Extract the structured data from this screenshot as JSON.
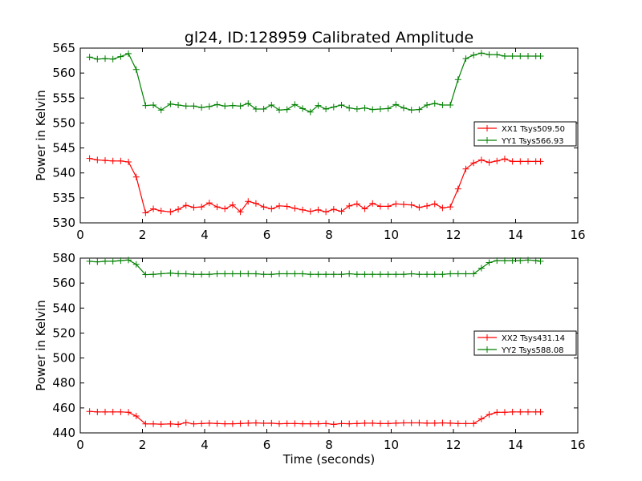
{
  "title": "gl24, ID:128959 Calibrated Amplitude",
  "chart_data": [
    {
      "type": "line",
      "ylabel": "Power in Kelvin",
      "xlabel": "",
      "xlim": [
        0,
        16
      ],
      "ylim": [
        530,
        565
      ],
      "x_ticks": [
        "0",
        "2",
        "4",
        "6",
        "8",
        "10",
        "12",
        "14",
        "16"
      ],
      "y_ticks": [
        "530",
        "535",
        "540",
        "545",
        "550",
        "555",
        "560",
        "565"
      ],
      "legend_position": "center-right",
      "x": [
        0.3,
        0.55,
        0.8,
        1.05,
        1.3,
        1.55,
        1.8,
        2.1,
        2.35,
        2.6,
        2.9,
        3.15,
        3.4,
        3.65,
        3.9,
        4.15,
        4.4,
        4.65,
        4.9,
        5.15,
        5.4,
        5.65,
        5.9,
        6.15,
        6.4,
        6.65,
        6.9,
        7.15,
        7.4,
        7.65,
        7.9,
        8.15,
        8.4,
        8.65,
        8.9,
        9.15,
        9.4,
        9.65,
        9.9,
        10.15,
        10.4,
        10.65,
        10.9,
        11.15,
        11.4,
        11.65,
        11.9,
        12.15,
        12.4,
        12.65,
        12.9,
        13.15,
        13.4,
        13.65,
        13.9,
        14.15,
        14.4,
        14.65,
        14.8
      ],
      "series": [
        {
          "name": "XX1 Tsys509.50",
          "color": "#ff0000",
          "values": [
            542.9,
            542.6,
            542.5,
            542.4,
            542.4,
            542.2,
            539.2,
            532.0,
            532.8,
            532.4,
            532.2,
            532.7,
            533.5,
            533.1,
            533.2,
            534.0,
            533.2,
            532.8,
            533.6,
            532.2,
            534.3,
            533.9,
            533.2,
            532.8,
            533.4,
            533.3,
            532.9,
            532.6,
            532.3,
            532.6,
            532.2,
            532.7,
            532.3,
            533.4,
            533.8,
            532.8,
            533.9,
            533.3,
            533.3,
            533.8,
            533.7,
            533.6,
            533.1,
            533.4,
            533.8,
            533.0,
            533.2,
            536.8,
            540.8,
            542.0,
            542.6,
            542.1,
            542.4,
            542.8,
            542.3,
            542.3,
            542.3,
            542.3,
            542.3
          ]
        },
        {
          "name": "YY1 Tsys566.93",
          "color": "#008000",
          "values": [
            563.2,
            562.8,
            562.9,
            562.8,
            563.3,
            563.9,
            560.7,
            553.5,
            553.6,
            552.6,
            553.8,
            553.6,
            553.4,
            553.4,
            553.1,
            553.3,
            553.7,
            553.4,
            553.5,
            553.4,
            553.9,
            552.8,
            552.8,
            553.6,
            552.6,
            552.7,
            553.7,
            552.9,
            552.2,
            553.5,
            552.8,
            553.2,
            553.6,
            553.0,
            552.8,
            553.0,
            552.7,
            552.8,
            552.9,
            553.7,
            553.0,
            552.6,
            552.7,
            553.6,
            553.9,
            553.6,
            553.6,
            558.7,
            562.9,
            563.6,
            564.0,
            563.7,
            563.7,
            563.4,
            563.4,
            563.4,
            563.4,
            563.4,
            563.4
          ]
        }
      ]
    },
    {
      "type": "line",
      "ylabel": "Power in Kelvin",
      "xlabel": "Time (seconds)",
      "xlim": [
        0,
        16
      ],
      "ylim": [
        440,
        580
      ],
      "x_ticks": [
        "0",
        "2",
        "4",
        "6",
        "8",
        "10",
        "12",
        "14",
        "16"
      ],
      "y_ticks": [
        "440",
        "460",
        "480",
        "500",
        "520",
        "540",
        "560",
        "580"
      ],
      "legend_position": "center-right",
      "x": [
        0.3,
        0.55,
        0.8,
        1.05,
        1.3,
        1.55,
        1.8,
        2.1,
        2.35,
        2.6,
        2.9,
        3.15,
        3.4,
        3.65,
        3.9,
        4.15,
        4.4,
        4.65,
        4.9,
        5.15,
        5.4,
        5.65,
        5.9,
        6.15,
        6.4,
        6.65,
        6.9,
        7.15,
        7.4,
        7.65,
        7.9,
        8.15,
        8.4,
        8.65,
        8.9,
        9.15,
        9.4,
        9.65,
        9.9,
        10.15,
        10.4,
        10.65,
        10.9,
        11.15,
        11.4,
        11.65,
        11.9,
        12.15,
        12.4,
        12.65,
        12.9,
        13.15,
        13.4,
        13.65,
        13.9,
        14.15,
        14.4,
        14.65,
        14.8
      ],
      "series": [
        {
          "name": "XX2 Tsys431.14",
          "color": "#ff0000",
          "values": [
            457.2,
            456.8,
            456.8,
            456.8,
            456.8,
            456.5,
            453.5,
            447.2,
            447.2,
            447.0,
            447.2,
            446.8,
            448.2,
            447.2,
            447.5,
            447.8,
            447.5,
            447.3,
            447.3,
            447.5,
            447.8,
            448.0,
            447.7,
            447.8,
            447.3,
            447.5,
            447.5,
            447.3,
            447.3,
            447.3,
            447.5,
            446.8,
            447.5,
            447.3,
            447.5,
            447.8,
            447.8,
            447.5,
            447.5,
            447.8,
            448.0,
            448.0,
            448.0,
            447.8,
            447.8,
            448.0,
            447.8,
            447.5,
            447.5,
            447.5,
            451.2,
            454.8,
            456.5,
            456.5,
            456.8,
            456.8,
            456.8,
            456.8,
            456.8
          ]
        },
        {
          "name": "YY2 Tsys588.08",
          "color": "#008000",
          "values": [
            577.5,
            577.0,
            577.5,
            577.5,
            578.0,
            578.5,
            575.0,
            566.8,
            567.0,
            567.5,
            568.0,
            567.5,
            567.5,
            567.0,
            567.0,
            567.0,
            567.5,
            567.5,
            567.5,
            567.5,
            567.5,
            567.5,
            567.0,
            567.0,
            567.5,
            567.5,
            567.5,
            567.5,
            567.0,
            567.0,
            567.0,
            567.0,
            567.0,
            567.5,
            567.0,
            567.0,
            567.0,
            567.0,
            567.0,
            567.0,
            567.0,
            567.5,
            567.0,
            567.0,
            567.0,
            567.0,
            567.5,
            567.5,
            567.5,
            567.5,
            572.0,
            576.5,
            578.0,
            578.0,
            578.0,
            578.0,
            578.5,
            578.0,
            577.5
          ]
        }
      ]
    }
  ]
}
